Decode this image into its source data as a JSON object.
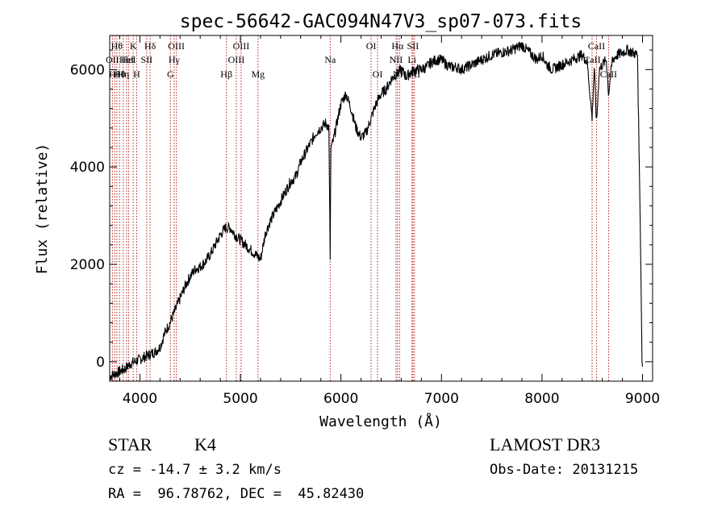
{
  "chart_data": {
    "type": "line",
    "title": "spec-56642-GAC094N47V3_sp07-073.fits",
    "xlabel": "Wavelength (Å)",
    "ylabel": "Flux (relative)",
    "xlim": [
      3700,
      9100
    ],
    "ylim": [
      -400,
      6700
    ],
    "xticks": [
      4000,
      5000,
      6000,
      7000,
      8000,
      9000
    ],
    "yticks": [
      0,
      2000,
      4000,
      6000
    ],
    "xtick_labels": [
      "4000",
      "5000",
      "6000",
      "7000",
      "8000",
      "9000"
    ],
    "ytick_labels": [
      "0",
      "2000",
      "4000",
      "6000"
    ],
    "line_color": "#000000",
    "marker_color": "#b22222",
    "series": [
      {
        "name": "flux",
        "x": [
          3700,
          3750,
          3800,
          3850,
          3900,
          3950,
          4000,
          4050,
          4100,
          4150,
          4200,
          4250,
          4300,
          4350,
          4400,
          4450,
          4500,
          4550,
          4600,
          4650,
          4700,
          4750,
          4800,
          4850,
          4900,
          4950,
          5000,
          5050,
          5100,
          5150,
          5200,
          5250,
          5300,
          5350,
          5400,
          5450,
          5500,
          5550,
          5600,
          5650,
          5700,
          5750,
          5800,
          5850,
          5880,
          5893,
          5900,
          5920,
          5950,
          6000,
          6050,
          6100,
          6150,
          6200,
          6250,
          6300,
          6350,
          6400,
          6450,
          6500,
          6550,
          6600,
          6650,
          6700,
          6750,
          6800,
          6850,
          6900,
          6950,
          7000,
          7050,
          7100,
          7150,
          7200,
          7300,
          7400,
          7500,
          7600,
          7700,
          7800,
          7900,
          7950,
          8000,
          8050,
          8100,
          8200,
          8300,
          8400,
          8450,
          8498,
          8520,
          8542,
          8570,
          8600,
          8640,
          8662,
          8700,
          8750,
          8800,
          8850,
          8900,
          8950,
          8980,
          8995,
          9000
        ],
        "y": [
          -300,
          -250,
          -200,
          -150,
          -50,
          0,
          50,
          100,
          150,
          200,
          300,
          600,
          800,
          1050,
          1300,
          1550,
          1750,
          1900,
          1950,
          2050,
          2200,
          2400,
          2600,
          2750,
          2750,
          2600,
          2500,
          2400,
          2300,
          2200,
          2100,
          2650,
          2900,
          3100,
          3300,
          3500,
          3700,
          3800,
          4100,
          4300,
          4500,
          4700,
          4800,
          4900,
          4800,
          2100,
          4400,
          4500,
          4800,
          5300,
          5500,
          5200,
          4800,
          4600,
          4700,
          5000,
          5300,
          5500,
          5600,
          5800,
          5900,
          6000,
          5850,
          5950,
          6000,
          6000,
          6050,
          6150,
          6200,
          6200,
          6100,
          6050,
          6050,
          6000,
          6100,
          6200,
          6300,
          6350,
          6400,
          6500,
          6300,
          6200,
          6300,
          6100,
          6000,
          6100,
          6200,
          6300,
          6150,
          5000,
          6050,
          4900,
          6000,
          6100,
          6200,
          5500,
          6200,
          6300,
          6350,
          6400,
          6350,
          6300,
          2500,
          0,
          -100
        ]
      }
    ],
    "lines": [
      {
        "wl": 3727,
        "label": "OII",
        "row": 2
      },
      {
        "wl": 3750,
        "label": "Hθ",
        "row": 3
      },
      {
        "wl": 3771,
        "label": "Hθ",
        "row": 1
      },
      {
        "wl": 3798,
        "label": "Hθ",
        "row": 3
      },
      {
        "wl": 3835,
        "label": "Hη",
        "row": 3
      },
      {
        "wl": 3869,
        "label": "HeI",
        "row": 2
      },
      {
        "wl": 3889,
        "label": "HeI",
        "row": 2
      },
      {
        "wl": 3934,
        "label": "K",
        "row": 1
      },
      {
        "wl": 3968,
        "label": "H",
        "row": 3
      },
      {
        "wl": 4068,
        "label": "SII",
        "row": 2
      },
      {
        "wl": 4102,
        "label": "Hδ",
        "row": 1
      },
      {
        "wl": 4304,
        "label": "G",
        "row": 3
      },
      {
        "wl": 4341,
        "label": "Hγ",
        "row": 2
      },
      {
        "wl": 4363,
        "label": "OIII",
        "row": 1
      },
      {
        "wl": 4861,
        "label": "Hβ",
        "row": 3
      },
      {
        "wl": 4959,
        "label": "OIII",
        "row": 2
      },
      {
        "wl": 5007,
        "label": "OIII",
        "row": 1
      },
      {
        "wl": 5175,
        "label": "Mg",
        "row": 3
      },
      {
        "wl": 5893,
        "label": "Na",
        "row": 2
      },
      {
        "wl": 6300,
        "label": "OI",
        "row": 1
      },
      {
        "wl": 6364,
        "label": "OI",
        "row": 3
      },
      {
        "wl": 6548,
        "label": "NII",
        "row": 2
      },
      {
        "wl": 6563,
        "label": "Hα",
        "row": 1
      },
      {
        "wl": 6583,
        "label": "NII",
        "row": 3
      },
      {
        "wl": 6707,
        "label": "Li",
        "row": 2
      },
      {
        "wl": 6716,
        "label": "SII",
        "row": 1
      },
      {
        "wl": 6731,
        "label": "SII",
        "row": 3
      },
      {
        "wl": 8498,
        "label": "CaII",
        "row": 2
      },
      {
        "wl": 8542,
        "label": "CaII",
        "row": 1
      },
      {
        "wl": 8662,
        "label": "CaII",
        "row": 3
      }
    ]
  },
  "info": {
    "object_type": "STAR",
    "subclass": "K4",
    "redshift": "cz = -14.7 ± 3.2 km/s",
    "coords": "RA =  96.78762, DEC =  45.82430",
    "survey": "LAMOST DR3",
    "obs_date": "Obs-Date: 20131215"
  }
}
